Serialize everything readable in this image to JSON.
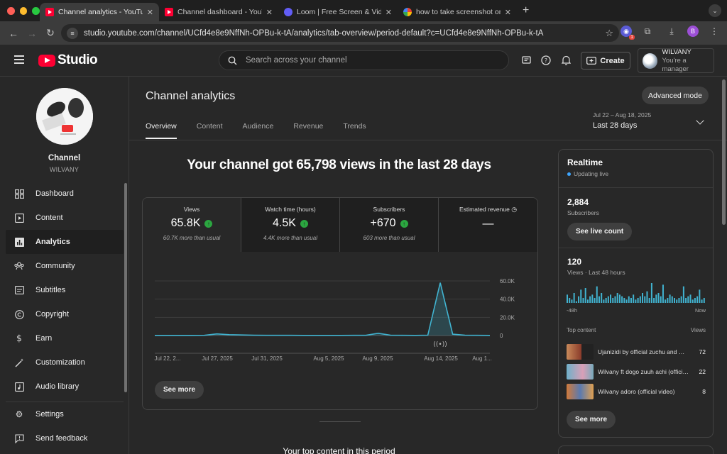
{
  "browser": {
    "tabs": [
      {
        "label": "Channel analytics - YouTube Studio",
        "favicon": "youtube-icon",
        "active": true
      },
      {
        "label": "Channel dashboard - YouTube Studio",
        "favicon": "youtube-icon",
        "active": false
      },
      {
        "label": "Loom | Free Screen & Video Recording",
        "favicon": "loom-icon",
        "active": false
      },
      {
        "label": "how to take screenshot on mac",
        "favicon": "google-icon",
        "active": false
      }
    ],
    "url": "studio.youtube.com/channel/UCfd4e8e9NffNh-OPBu-k-tA/analytics/tab-overview/period-default?c=UCfd4e8e9NffNh-OPBu-k-tA",
    "ext_badge": "1",
    "profile_initial": "B"
  },
  "header": {
    "logo_text": "Studio",
    "search_placeholder": "Search across your channel",
    "create_label": "Create",
    "account_name": "WILVANY",
    "account_role": "You're a manager"
  },
  "sidebar": {
    "channel_title": "Channel",
    "channel_name": "WILVANY",
    "items": [
      {
        "label": "Dashboard",
        "icon": "dashboard-icon"
      },
      {
        "label": "Content",
        "icon": "content-icon"
      },
      {
        "label": "Analytics",
        "icon": "analytics-icon",
        "active": true
      },
      {
        "label": "Community",
        "icon": "community-icon"
      },
      {
        "label": "Subtitles",
        "icon": "subtitles-icon"
      },
      {
        "label": "Copyright",
        "icon": "copyright-icon"
      },
      {
        "label": "Earn",
        "icon": "earn-icon"
      },
      {
        "label": "Customization",
        "icon": "customization-icon"
      },
      {
        "label": "Audio library",
        "icon": "audio-library-icon"
      }
    ],
    "bottom_items": [
      {
        "label": "Settings",
        "icon": "settings-icon"
      },
      {
        "label": "Send feedback",
        "icon": "feedback-icon"
      }
    ]
  },
  "main": {
    "title": "Channel analytics",
    "advanced_mode": "Advanced mode",
    "tabs": [
      "Overview",
      "Content",
      "Audience",
      "Revenue",
      "Trends"
    ],
    "date_range": "Jul 22 – Aug 18, 2025",
    "date_label": "Last 28 days",
    "headline": "Your channel got 65,798 views in the last 28 days",
    "metrics": [
      {
        "label": "Views",
        "value": "65.8K",
        "compare": "60.7K more than usual",
        "trend": "up"
      },
      {
        "label": "Watch time (hours)",
        "value": "4.5K",
        "compare": "4.4K more than usual",
        "trend": "up"
      },
      {
        "label": "Subscribers",
        "value": "+670",
        "compare": "603 more than usual",
        "trend": "up"
      },
      {
        "label": "Estimated revenue",
        "value": "—",
        "compare": "",
        "trend": "none"
      }
    ],
    "see_more": "See more",
    "top_content_title": "Your top content in this period"
  },
  "chart_data": {
    "type": "line",
    "title": "",
    "x_tick_labels": [
      "Jul 22, 2...",
      "Jul 27, 2025",
      "Jul 31, 2025",
      "Aug 5, 2025",
      "Aug 9, 2025",
      "Aug 14, 2025",
      "Aug 1..."
    ],
    "y_tick_labels": [
      "60.0K",
      "40.0K",
      "20.0K",
      "0"
    ],
    "ylim": [
      0,
      60000
    ],
    "x": [
      "Jul 22",
      "Jul 23",
      "Jul 24",
      "Jul 25",
      "Jul 26",
      "Jul 27",
      "Jul 28",
      "Jul 29",
      "Jul 30",
      "Jul 31",
      "Aug 1",
      "Aug 2",
      "Aug 3",
      "Aug 4",
      "Aug 5",
      "Aug 6",
      "Aug 7",
      "Aug 8",
      "Aug 9",
      "Aug 10",
      "Aug 11",
      "Aug 12",
      "Aug 13",
      "Aug 14",
      "Aug 15",
      "Aug 16",
      "Aug 17",
      "Aug 18"
    ],
    "series": [
      {
        "values": [
          150,
          150,
          150,
          150,
          200,
          1800,
          900,
          600,
          300,
          200,
          200,
          200,
          150,
          150,
          150,
          150,
          200,
          200,
          2500,
          300,
          200,
          150,
          400,
          58000,
          1500,
          300,
          200,
          150
        ]
      }
    ],
    "color": "#41b4d1",
    "grid": true
  },
  "realtime": {
    "title": "Realtime",
    "status": "Updating live",
    "subscribers_value": "2,884",
    "subscribers_label": "Subscribers",
    "see_live_count": "See live count",
    "views_value": "120",
    "views_label": "Views · Last 48 hours",
    "axis_start": "-48h",
    "axis_end": "Now",
    "bar_values": [
      5,
      3,
      2,
      6,
      1,
      4,
      8,
      3,
      9,
      2,
      4,
      5,
      3,
      10,
      4,
      6,
      2,
      3,
      4,
      5,
      3,
      4,
      6,
      5,
      4,
      3,
      2,
      4,
      3,
      5,
      2,
      3,
      4,
      6,
      4,
      7,
      3,
      12,
      3,
      5,
      6,
      4,
      11,
      2,
      3,
      5,
      4,
      3,
      2,
      3,
      4,
      10,
      3,
      4,
      5,
      2,
      3,
      4,
      8,
      2,
      3
    ],
    "top_content_label": "Top content",
    "views_col_label": "Views",
    "top_content": [
      {
        "title": "Ujanizidi by official zuchu and Diamond",
        "views": "72"
      },
      {
        "title": "Wilvany ft dogo zuuh achi (official video)",
        "views": "22"
      },
      {
        "title": "Wilvany adoro (official video)",
        "views": "8"
      }
    ],
    "see_more": "See more"
  }
}
